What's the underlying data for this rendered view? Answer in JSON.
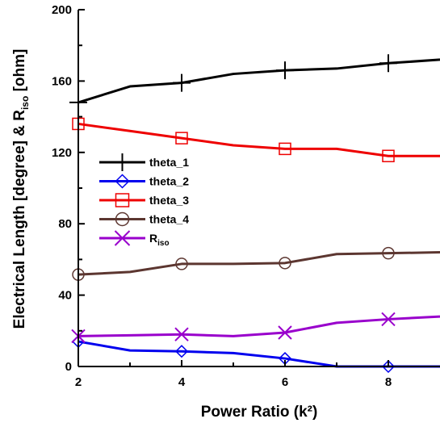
{
  "chart_data": {
    "type": "line",
    "title": "",
    "xlabel": "Power Ratio (k²)",
    "ylabel": "Electrical Length [degree] & Riso [ohm]",
    "xlim": [
      2,
      9
    ],
    "ylim": [
      0,
      200
    ],
    "xticks": [
      2,
      4,
      6,
      8
    ],
    "yticks": [
      0,
      40,
      80,
      120,
      160,
      200
    ],
    "grid": false,
    "legend_position": "left-middle",
    "x": [
      2,
      3,
      4,
      5,
      6,
      7,
      8,
      9
    ],
    "series": [
      {
        "name": "theta_1",
        "marker": "plus",
        "marker_every": 2,
        "color": "#000000",
        "values": [
          148,
          157,
          159,
          164,
          166,
          167,
          170,
          172
        ]
      },
      {
        "name": "theta_2",
        "marker": "diamond",
        "marker_every": 2,
        "color": "#0000ee",
        "values": [
          14,
          9,
          8.5,
          7.5,
          4.5,
          0,
          0,
          0
        ]
      },
      {
        "name": "theta_3",
        "marker": "square",
        "marker_every": 2,
        "color": "#ee0000",
        "values": [
          136,
          132,
          128,
          124,
          122,
          122,
          118,
          118
        ]
      },
      {
        "name": "theta_4",
        "marker": "circle",
        "marker_every": 2,
        "color": "#5c3630",
        "values": [
          51.5,
          53,
          57.5,
          57.5,
          58,
          63,
          63.5,
          64
        ]
      },
      {
        "name": "Riso",
        "marker": "x",
        "marker_every": 2,
        "color": "#9900cc",
        "values": [
          17,
          17.5,
          18,
          17,
          19,
          24.5,
          26.5,
          28
        ]
      }
    ]
  }
}
